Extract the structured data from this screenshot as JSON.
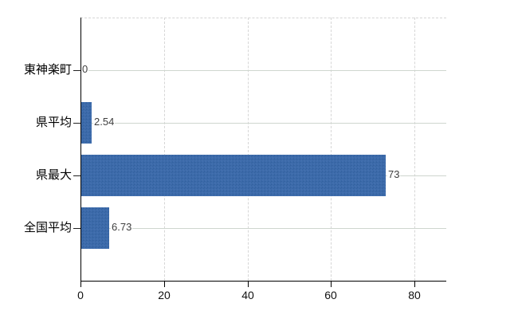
{
  "chart_data": {
    "type": "bar",
    "orientation": "horizontal",
    "title": "",
    "categories": [
      "東神楽町",
      "県平均",
      "県最大",
      "全国平均"
    ],
    "values": [
      0,
      2.54,
      73,
      6.73
    ],
    "value_labels": [
      "0",
      "2.54",
      "73",
      "6.73"
    ],
    "x_ticks": [
      0,
      20,
      40,
      60,
      80
    ],
    "x_tick_labels": [
      "0",
      "20",
      "40",
      "60",
      "80"
    ],
    "xlim": [
      0,
      88
    ],
    "grid": true,
    "legend": "none",
    "colors": {
      "bar": "#3e6baa",
      "bar_dither_light": "#4472b2",
      "bar_dither_dark": "#31619f",
      "grid_horizontal": "#cfd6cf",
      "grid_vertical": "#d6d6d6",
      "axis": "#000000",
      "value_text": "#3f3f3f",
      "tick_text": "#111111",
      "category_text": "#000000"
    }
  }
}
